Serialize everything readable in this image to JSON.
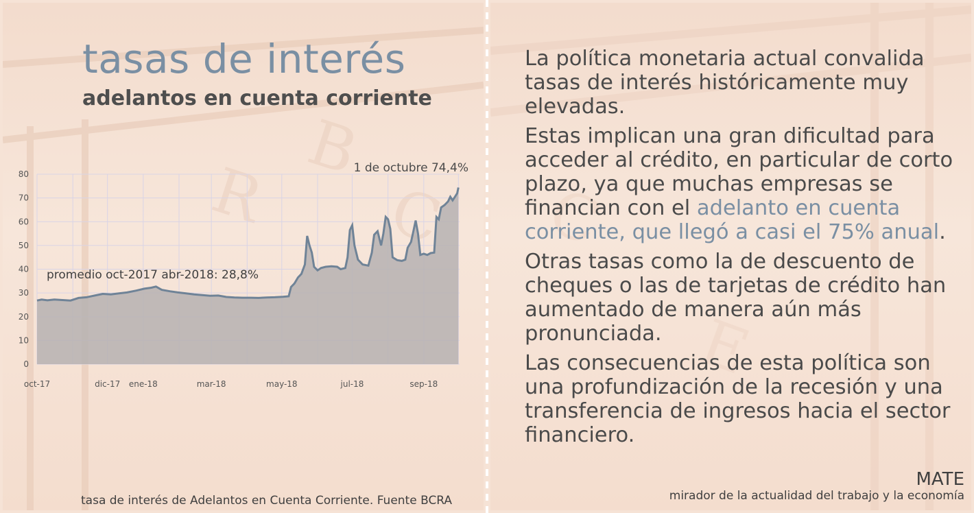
{
  "header": {
    "title": "tasas de interés",
    "subtitle": "adelantos en cuenta corriente"
  },
  "chart_data": {
    "type": "area",
    "ylim": [
      0,
      80
    ],
    "yticks": [
      0,
      10,
      20,
      30,
      40,
      50,
      60,
      70,
      80
    ],
    "xlim": [
      "2017-10-01",
      "2018-10-02"
    ],
    "x_tick_labels": [
      {
        "label": "oct-17",
        "date": "2017-10-01"
      },
      {
        "label": "dic-17",
        "date": "2017-12-01"
      },
      {
        "label": "ene-18",
        "date": "2018-01-01"
      },
      {
        "label": "mar-18",
        "date": "2018-03-01"
      },
      {
        "label": "may-18",
        "date": "2018-05-01"
      },
      {
        "label": "jul-18",
        "date": "2018-07-01"
      },
      {
        "label": "sep-18",
        "date": "2018-09-01"
      }
    ],
    "grid": true,
    "annotations": {
      "end": "1 de octubre 74,4%",
      "average": "promedio oct-2017 abr-2018: 28,8%"
    },
    "series": [
      {
        "line_color": "#6f8397",
        "fill_color": "#b6b2b2",
        "points": [
          [
            "2017-10-01",
            26.8
          ],
          [
            "2017-10-05",
            27.2
          ],
          [
            "2017-10-10",
            26.9
          ],
          [
            "2017-10-16",
            27.2
          ],
          [
            "2017-10-23",
            27.0
          ],
          [
            "2017-10-30",
            26.8
          ],
          [
            "2017-11-06",
            27.9
          ],
          [
            "2017-11-13",
            28.2
          ],
          [
            "2017-11-20",
            28.9
          ],
          [
            "2017-11-27",
            29.6
          ],
          [
            "2017-12-04",
            29.4
          ],
          [
            "2017-12-11",
            29.8
          ],
          [
            "2017-12-18",
            30.2
          ],
          [
            "2017-12-26",
            31.0
          ],
          [
            "2018-01-02",
            31.8
          ],
          [
            "2018-01-08",
            32.2
          ],
          [
            "2018-01-12",
            32.7
          ],
          [
            "2018-01-17",
            31.3
          ],
          [
            "2018-01-24",
            30.7
          ],
          [
            "2018-01-31",
            30.2
          ],
          [
            "2018-02-07",
            29.8
          ],
          [
            "2018-02-14",
            29.4
          ],
          [
            "2018-02-21",
            29.1
          ],
          [
            "2018-02-28",
            28.8
          ],
          [
            "2018-03-07",
            28.9
          ],
          [
            "2018-03-14",
            28.3
          ],
          [
            "2018-03-21",
            28.1
          ],
          [
            "2018-03-28",
            28.0
          ],
          [
            "2018-04-04",
            28.0
          ],
          [
            "2018-04-11",
            27.9
          ],
          [
            "2018-04-18",
            28.1
          ],
          [
            "2018-04-25",
            28.2
          ],
          [
            "2018-05-02",
            28.4
          ],
          [
            "2018-05-07",
            28.6
          ],
          [
            "2018-05-09",
            32.5
          ],
          [
            "2018-05-12",
            34.0
          ],
          [
            "2018-05-15",
            36.5
          ],
          [
            "2018-05-18",
            38.0
          ],
          [
            "2018-05-21",
            42.0
          ],
          [
            "2018-05-23",
            54.0
          ],
          [
            "2018-05-25",
            50.0
          ],
          [
            "2018-05-27",
            47.0
          ],
          [
            "2018-05-29",
            41.0
          ],
          [
            "2018-06-01",
            39.5
          ],
          [
            "2018-06-04",
            40.5
          ],
          [
            "2018-06-08",
            41.0
          ],
          [
            "2018-06-13",
            41.2
          ],
          [
            "2018-06-18",
            41.0
          ],
          [
            "2018-06-21",
            40.0
          ],
          [
            "2018-06-25",
            40.5
          ],
          [
            "2018-06-27",
            45.0
          ],
          [
            "2018-06-29",
            56.5
          ],
          [
            "2018-07-01",
            58.5
          ],
          [
            "2018-07-03",
            50.0
          ],
          [
            "2018-07-06",
            44.0
          ],
          [
            "2018-07-10",
            42.0
          ],
          [
            "2018-07-15",
            41.5
          ],
          [
            "2018-07-18",
            47.0
          ],
          [
            "2018-07-20",
            54.5
          ],
          [
            "2018-07-23",
            56.0
          ],
          [
            "2018-07-26",
            50.0
          ],
          [
            "2018-07-28",
            55.0
          ],
          [
            "2018-07-30",
            62.0
          ],
          [
            "2018-08-01",
            61.0
          ],
          [
            "2018-08-03",
            57.0
          ],
          [
            "2018-08-05",
            45.0
          ],
          [
            "2018-08-09",
            43.8
          ],
          [
            "2018-08-13",
            43.5
          ],
          [
            "2018-08-16",
            44.0
          ],
          [
            "2018-08-18",
            49.0
          ],
          [
            "2018-08-21",
            51.5
          ],
          [
            "2018-08-23",
            56.0
          ],
          [
            "2018-08-25",
            60.5
          ],
          [
            "2018-08-27",
            55.0
          ],
          [
            "2018-08-29",
            46.0
          ],
          [
            "2018-09-01",
            46.5
          ],
          [
            "2018-09-04",
            46.0
          ],
          [
            "2018-09-07",
            46.8
          ],
          [
            "2018-09-10",
            47.0
          ],
          [
            "2018-09-12",
            62.0
          ],
          [
            "2018-09-14",
            61.0
          ],
          [
            "2018-09-16",
            66.0
          ],
          [
            "2018-09-19",
            67.0
          ],
          [
            "2018-09-22",
            68.5
          ],
          [
            "2018-09-24",
            70.5
          ],
          [
            "2018-09-26",
            69.0
          ],
          [
            "2018-09-28",
            70.5
          ],
          [
            "2018-09-30",
            72.0
          ],
          [
            "2018-10-01",
            74.4
          ]
        ]
      }
    ]
  },
  "source": "tasa de interés de Adelantos en Cuenta Corriente. Fuente BCRA",
  "body": {
    "p1": "La política monetaria actual convalida tasas de interés históricamente muy elevadas.",
    "p2_a": "Estas implican una gran dificultad para acceder al crédito, en particular de corto plazo, ya que muchas empresas se financian con el ",
    "p2_highlight": "adelanto en cuenta corriente, que llegó a casi el 75% anual",
    "p2_b": ".",
    "p3": "Otras tasas como la de descuento de cheques o las de tarjetas de crédito han aumentado de manera aún más pronunciada.",
    "p4": "Las consecuencias de esta política son una profundización de la recesión y una transferencia de ingresos hacia el sector financiero."
  },
  "brand": {
    "name": "MATE",
    "tagline": "mirador de la actualidad del trabajo y la economía"
  },
  "colors": {
    "accent": "#7a8fa3",
    "text": "#4a4a4a"
  }
}
